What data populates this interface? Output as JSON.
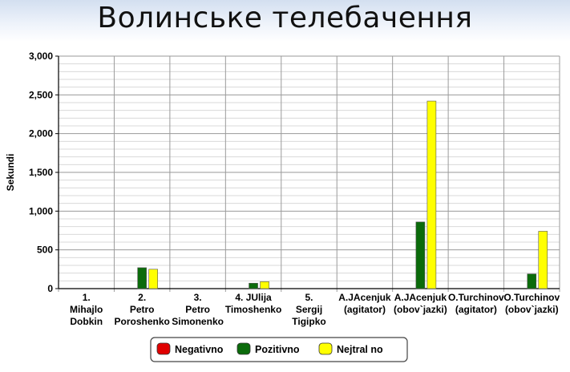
{
  "title": "Волинське телебачення",
  "chart_data": {
    "type": "bar",
    "categories": [
      [
        "1.",
        "Mihajlo",
        "Dobkin"
      ],
      [
        "2.",
        "Petro",
        "Poroshenko"
      ],
      [
        "3.",
        "Petro",
        "Simonenko"
      ],
      [
        "4. JUlija",
        "Timoshenko"
      ],
      [
        "5.",
        "Sergij",
        "Tigipko"
      ],
      [
        "A.JAcenjuk",
        "(agitator)"
      ],
      [
        "A.JAcenjuk",
        "(obov`jazki)"
      ],
      [
        "O.Turchinov",
        "(agitator)"
      ],
      [
        "O.Turchinov",
        "(obov`jazki)"
      ]
    ],
    "series": [
      {
        "name": "Negativno",
        "color": "#e00000",
        "values": [
          0,
          0,
          0,
          0,
          0,
          0,
          0,
          0,
          0
        ]
      },
      {
        "name": "Pozitivno",
        "color": "#0b6b0b",
        "values": [
          0,
          270,
          0,
          70,
          0,
          0,
          860,
          0,
          190
        ]
      },
      {
        "name": "Nejtral no",
        "color": "#ffff00",
        "values": [
          0,
          250,
          0,
          90,
          0,
          0,
          2420,
          0,
          740
        ]
      }
    ],
    "ylabel": "Sekundi",
    "xlabel": "",
    "ylim": [
      0,
      3000
    ],
    "yticks": [
      0,
      500,
      1000,
      1500,
      2000,
      2500,
      3000
    ],
    "ytick_labels": [
      "0",
      "500",
      "1,000",
      "1,500",
      "2,000",
      "2,500",
      "3,000"
    ],
    "grid": true,
    "legend_position": "bottom-center"
  }
}
